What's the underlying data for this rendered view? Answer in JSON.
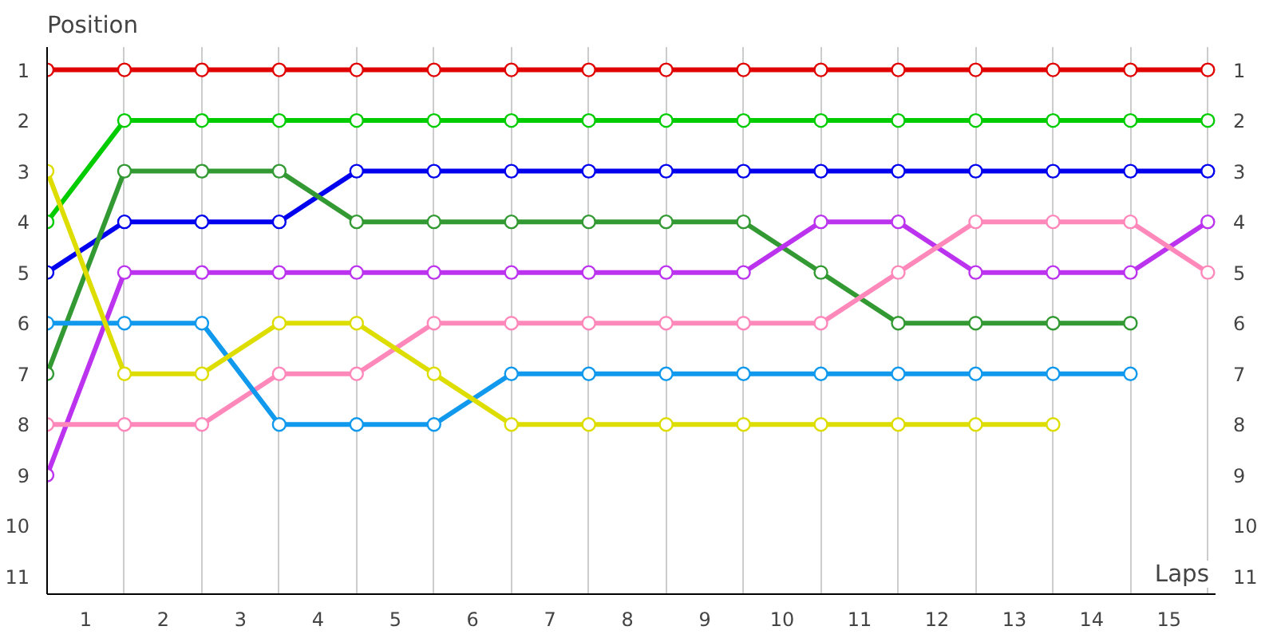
{
  "chart_data": {
    "type": "line",
    "xlabel": "Laps",
    "ylabel": "Position",
    "x": [
      0,
      1,
      2,
      3,
      4,
      5,
      6,
      7,
      8,
      9,
      10,
      11,
      12,
      13,
      14,
      15
    ],
    "xlim": [
      0,
      15.1
    ],
    "xticks": [
      {
        "value": 0,
        "label": null
      },
      {
        "value": 1,
        "label": null
      },
      {
        "value": 2,
        "label": null
      },
      {
        "value": 3,
        "label": null
      },
      {
        "value": 4,
        "label": null
      },
      {
        "value": 5,
        "label": null
      },
      {
        "value": 6,
        "label": null
      },
      {
        "value": 7,
        "label": null
      },
      {
        "value": 8,
        "label": null
      },
      {
        "value": 9,
        "label": null
      },
      {
        "value": 10,
        "label": null
      },
      {
        "value": 11,
        "label": null
      },
      {
        "value": 12,
        "label": null
      },
      {
        "value": 13,
        "label": null
      },
      {
        "value": 14,
        "label": null
      },
      {
        "value": 15,
        "label": null
      },
      {
        "value": 0.5,
        "label": "1"
      },
      {
        "value": 1.5,
        "label": "2"
      },
      {
        "value": 2.5,
        "label": "3"
      },
      {
        "value": 3.5,
        "label": "4"
      },
      {
        "value": 4.5,
        "label": "5"
      },
      {
        "value": 5.5,
        "label": "6"
      },
      {
        "value": 6.5,
        "label": "7"
      },
      {
        "value": 7.5,
        "label": "8"
      },
      {
        "value": 8.5,
        "label": "9"
      },
      {
        "value": 9.5,
        "label": "10"
      },
      {
        "value": 10.5,
        "label": "11"
      },
      {
        "value": 11.5,
        "label": "12"
      },
      {
        "value": 12.5,
        "label": "13"
      },
      {
        "value": 13.5,
        "label": "14"
      },
      {
        "value": 14.5,
        "label": "15"
      }
    ],
    "ylim": [
      11.35,
      0.55
    ],
    "yticks": [
      1,
      2,
      3,
      4,
      5,
      6,
      7,
      8,
      9,
      10,
      11
    ],
    "y2lim": [
      11.35,
      0.55
    ],
    "y2ticks": [
      1,
      2,
      3,
      4,
      5,
      6,
      7,
      8,
      9,
      10,
      11
    ],
    "grid": "x",
    "marker": "circle",
    "line_style": "solid",
    "series": [
      {
        "color": "#e00000",
        "values": [
          1,
          1,
          1,
          1,
          1,
          1,
          1,
          1,
          1,
          1,
          1,
          1,
          1,
          1,
          1,
          1
        ]
      },
      {
        "color": "#00cc00",
        "values": [
          4,
          2,
          2,
          2,
          2,
          2,
          2,
          2,
          2,
          2,
          2,
          2,
          2,
          2,
          2,
          2
        ]
      },
      {
        "color": "#0000ee",
        "values": [
          5,
          4,
          4,
          4,
          3,
          3,
          3,
          3,
          3,
          3,
          3,
          3,
          3,
          3,
          3,
          3
        ]
      },
      {
        "color": "#339933",
        "values": [
          7,
          3,
          3,
          3,
          4,
          4,
          4,
          4,
          4,
          4,
          5,
          6,
          6,
          6,
          6,
          null
        ]
      },
      {
        "color": "#bb33ee",
        "values": [
          9,
          5,
          5,
          5,
          5,
          5,
          5,
          5,
          5,
          5,
          4,
          4,
          5,
          5,
          5,
          4
        ]
      },
      {
        "color": "#ff88bb",
        "values": [
          8,
          8,
          8,
          7,
          7,
          6,
          6,
          6,
          6,
          6,
          6,
          5,
          4,
          4,
          4,
          5
        ]
      },
      {
        "color": "#1199ee",
        "values": [
          6,
          6,
          6,
          8,
          8,
          8,
          7,
          7,
          7,
          7,
          7,
          7,
          7,
          7,
          7,
          null
        ]
      },
      {
        "color": "#dddd00",
        "values": [
          3,
          7,
          7,
          6,
          6,
          7,
          8,
          8,
          8,
          8,
          8,
          8,
          8,
          8,
          null,
          null
        ]
      }
    ]
  }
}
